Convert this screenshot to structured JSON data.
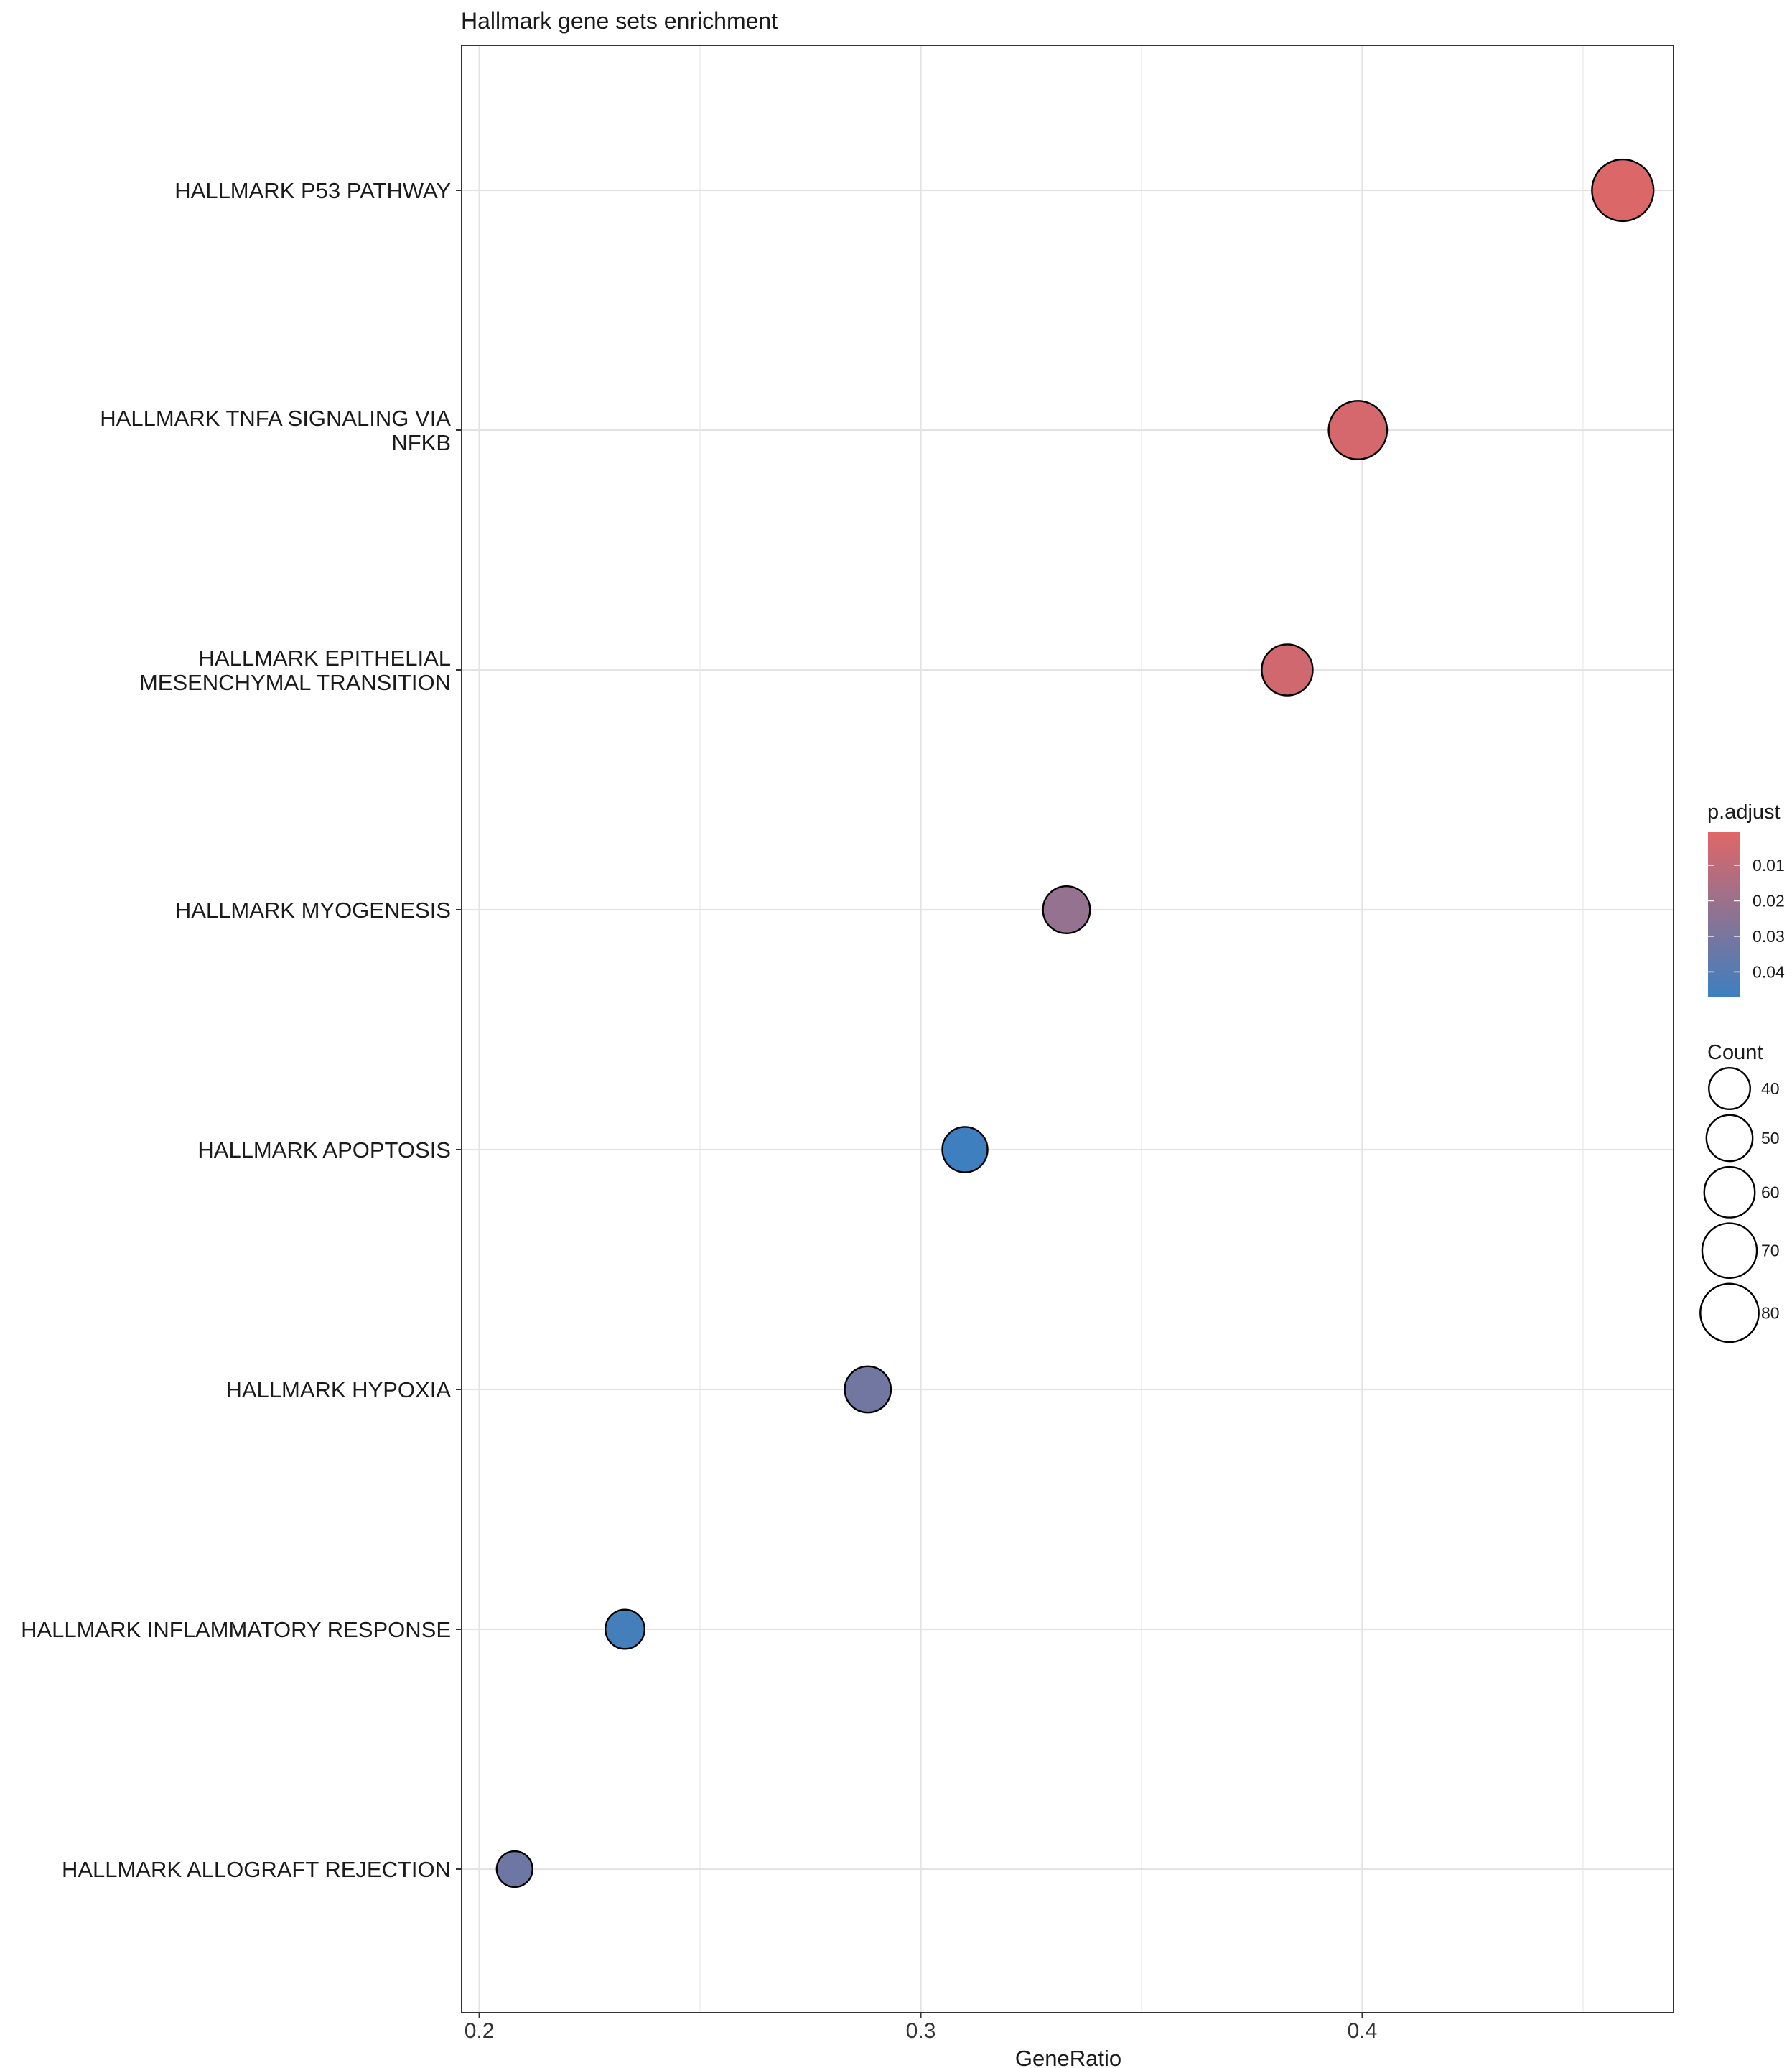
{
  "chart_data": {
    "type": "scatter",
    "title": "Hallmark gene sets enrichment",
    "xlabel": "GeneRatio",
    "ylabel": "",
    "xlim": [
      0.196,
      0.4705
    ],
    "xticks": [
      0.2,
      0.3,
      0.4
    ],
    "xtick_labels": [
      "0.2",
      "0.3",
      "0.4"
    ],
    "grid": true,
    "categories": [
      {
        "lines": [
          "HALLMARK P53 PATHWAY"
        ]
      },
      {
        "lines": [
          "HALLMARK TNFA SIGNALING VIA",
          "NFKB"
        ]
      },
      {
        "lines": [
          "HALLMARK EPITHELIAL",
          "MESENCHYMAL TRANSITION"
        ]
      },
      {
        "lines": [
          "HALLMARK MYOGENESIS"
        ]
      },
      {
        "lines": [
          "HALLMARK APOPTOSIS"
        ]
      },
      {
        "lines": [
          "HALLMARK HYPOXIA"
        ]
      },
      {
        "lines": [
          "HALLMARK INFLAMMATORY RESPONSE"
        ]
      },
      {
        "lines": [
          "HALLMARK ALLOGRAFT REJECTION"
        ]
      }
    ],
    "points": [
      {
        "gene_ratio": 0.459,
        "count": 89,
        "p_adjust": 0.002
      },
      {
        "gene_ratio": 0.399,
        "count": 80,
        "p_adjust": 0.004
      },
      {
        "gene_ratio": 0.383,
        "count": 61,
        "p_adjust": 0.005
      },
      {
        "gene_ratio": 0.333,
        "count": 52,
        "p_adjust": 0.022
      },
      {
        "gene_ratio": 0.31,
        "count": 48,
        "p_adjust": 0.047
      },
      {
        "gene_ratio": 0.288,
        "count": 50,
        "p_adjust": 0.032
      },
      {
        "gene_ratio": 0.233,
        "count": 36,
        "p_adjust": 0.045
      },
      {
        "gene_ratio": 0.208,
        "count": 30,
        "p_adjust": 0.033
      }
    ],
    "legend_color": {
      "title": "p.adjust",
      "labels": [
        "0.01",
        "0.02",
        "0.03",
        "0.04"
      ],
      "values": [
        0.01,
        0.02,
        0.03,
        0.04
      ],
      "range": [
        0.0005,
        0.047
      ],
      "low_color": "#e06666",
      "high_color": "#3d7fbf"
    },
    "legend_size": {
      "title": "Count",
      "labels": [
        "40",
        "50",
        "60",
        "70",
        "80"
      ],
      "values": [
        40,
        50,
        60,
        70,
        80
      ]
    },
    "legend_placement": "right"
  }
}
